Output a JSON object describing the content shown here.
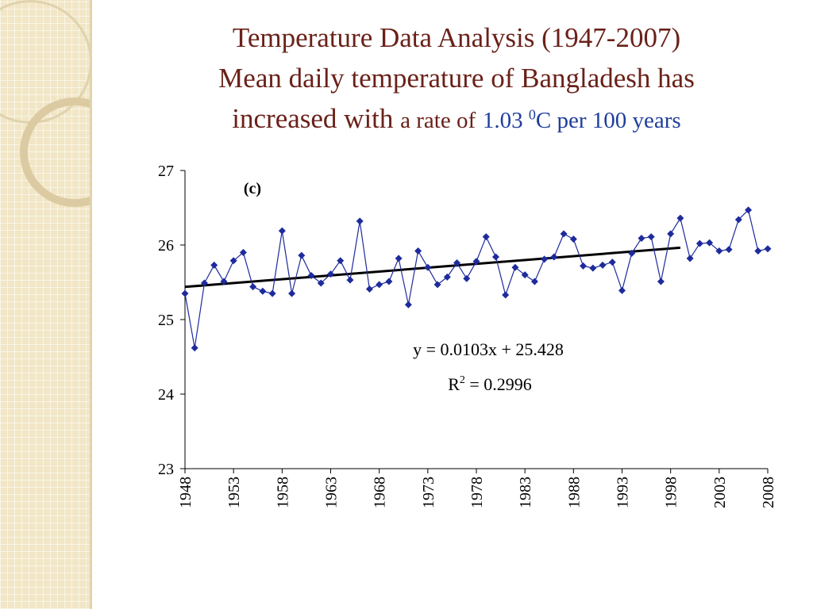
{
  "title": {
    "line1": "Temperature Data Analysis (1947-2007)",
    "line2": "Mean daily temperature of Bangladesh has",
    "line3_main": "increased with",
    "line3_rate": "a rate of",
    "line3_value": "1.03",
    "line3_sup": "0",
    "line3_unit": "C per 100 years"
  },
  "colors": {
    "title": "#6a2119",
    "highlight": "#1f3e9c",
    "series": "#1e2b9c",
    "trend": "#000000",
    "sidebar": "#f1e6c6"
  },
  "chart_data": {
    "type": "line",
    "panel_label": "(c)",
    "x": [
      1948,
      1949,
      1950,
      1951,
      1952,
      1953,
      1954,
      1955,
      1956,
      1957,
      1958,
      1959,
      1960,
      1961,
      1962,
      1963,
      1964,
      1965,
      1966,
      1967,
      1968,
      1969,
      1970,
      1971,
      1972,
      1973,
      1974,
      1975,
      1976,
      1977,
      1978,
      1979,
      1980,
      1981,
      1982,
      1983,
      1984,
      1985,
      1986,
      1987,
      1988,
      1989,
      1990,
      1991,
      1992,
      1993,
      1994,
      1995,
      1996,
      1997,
      1998,
      1999,
      2000,
      2001,
      2002,
      2003,
      2004,
      2005,
      2006,
      2007,
      2008
    ],
    "series": [
      {
        "name": "",
        "values": [
          25.35,
          24.62,
          25.49,
          25.73,
          25.51,
          25.79,
          25.9,
          25.44,
          25.38,
          25.35,
          26.19,
          25.35,
          25.86,
          25.59,
          25.49,
          25.61,
          25.79,
          25.53,
          26.32,
          25.41,
          25.47,
          25.51,
          25.82,
          25.2,
          25.92,
          25.7,
          25.47,
          25.57,
          25.76,
          25.55,
          25.78,
          26.11,
          25.84,
          25.33,
          25.7,
          25.6,
          25.51,
          25.81,
          25.84,
          26.15,
          26.08,
          25.72,
          25.69,
          25.73,
          25.77,
          25.39,
          25.89,
          26.09,
          26.11,
          25.51,
          26.15,
          26.36,
          25.82,
          26.02,
          26.03,
          25.92,
          25.94,
          26.34,
          26.47,
          25.92,
          25.95
        ],
        "marker": "diamond"
      }
    ],
    "trendline": {
      "slope": 0.0103,
      "intercept": 25.428,
      "x_start": 1,
      "x_end": 52
    },
    "equation": "y = 0.0103x + 25.428",
    "r2_prefix": "R",
    "r2_sup": "2",
    "r2_rest": " = 0.2996",
    "ylim": [
      23,
      27
    ],
    "y_ticks": [
      "23",
      "24",
      "25",
      "26",
      "27"
    ],
    "xlim": [
      1948,
      2008
    ],
    "x_ticks": [
      "1948",
      "1953",
      "1958",
      "1963",
      "1968",
      "1973",
      "1978",
      "1983",
      "1988",
      "1993",
      "1998",
      "2003",
      "2008"
    ],
    "xlabel": "",
    "ylabel": "",
    "grid": false,
    "legend": "none"
  }
}
